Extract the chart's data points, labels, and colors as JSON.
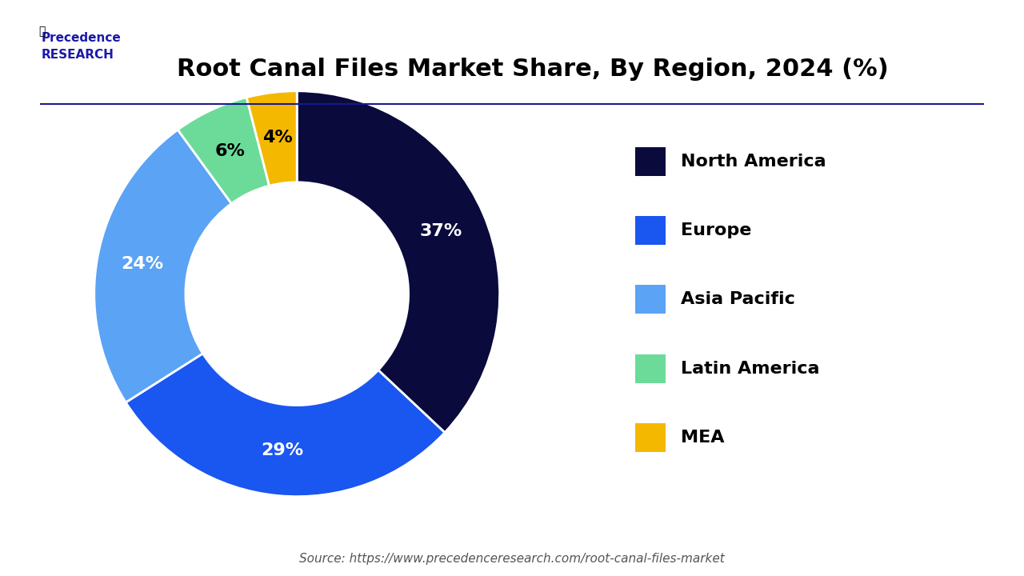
{
  "title": "Root Canal Files Market Share, By Region, 2024 (%)",
  "segments": [
    {
      "label": "North America",
      "value": 37,
      "color": "#0a0a3d"
    },
    {
      "label": "Europe",
      "value": 29,
      "color": "#1a56f0"
    },
    {
      "label": "Asia Pacific",
      "value": 24,
      "color": "#5ba3f5"
    },
    {
      "label": "Latin America",
      "value": 6,
      "color": "#6cdb9a"
    },
    {
      "label": "MEA",
      "value": 4,
      "color": "#f5b800"
    }
  ],
  "background_color": "#ffffff",
  "title_fontsize": 22,
  "label_fontsize": 16,
  "legend_fontsize": 16,
  "source_text": "Source: https://www.precedenceresearch.com/root-canal-files-market",
  "source_fontsize": 11,
  "donut_width": 0.45,
  "start_angle": 90
}
